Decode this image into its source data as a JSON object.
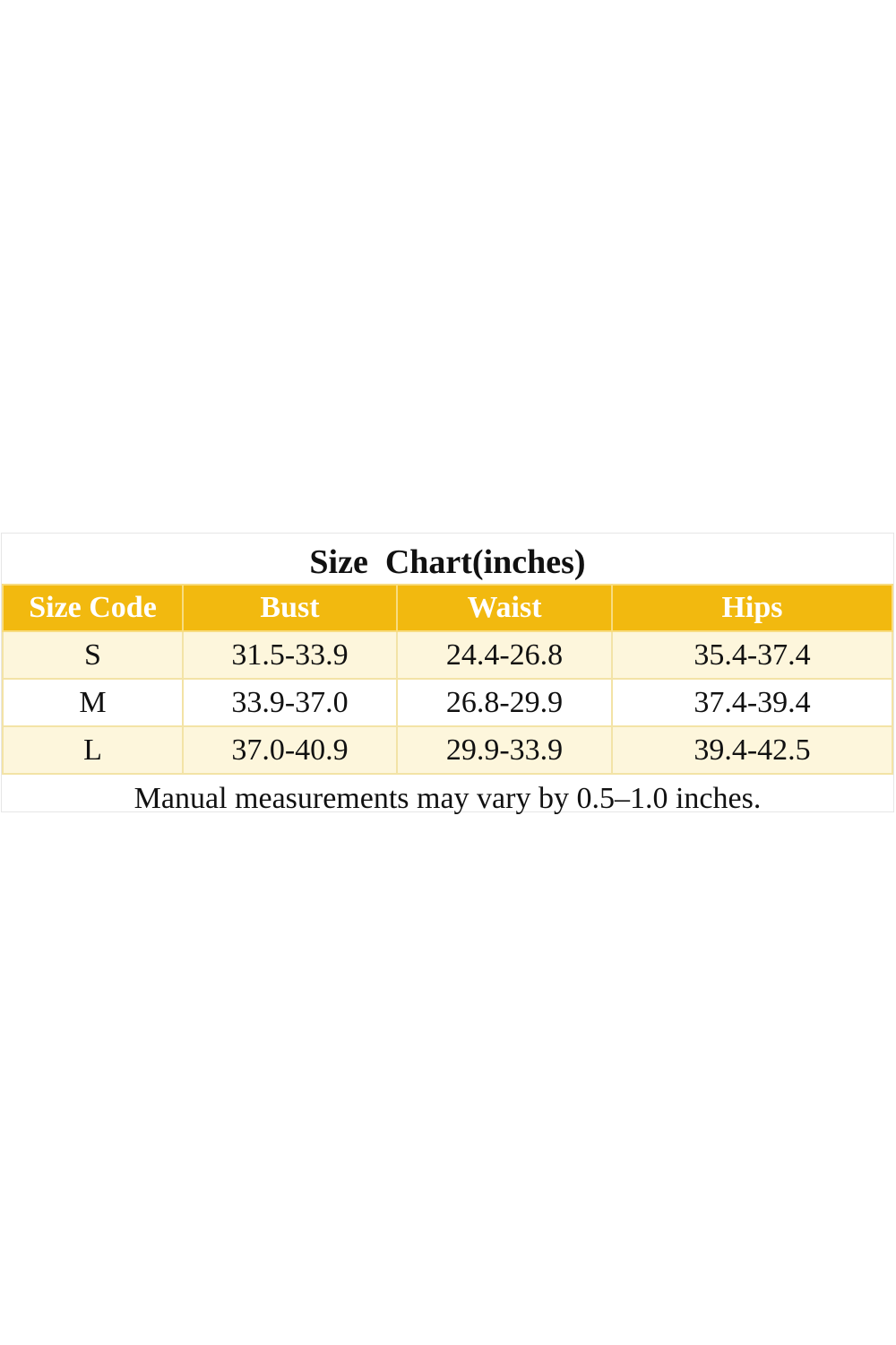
{
  "header": {
    "title": "Size  Chart(inches)"
  },
  "table": {
    "columns": [
      "Size Code",
      "Bust",
      "Waist",
      "Hips"
    ],
    "rows": [
      [
        "S",
        "31.5-33.9",
        "24.4-26.8",
        "35.4-37.4"
      ],
      [
        "M",
        "33.9-37.0",
        "26.8-29.9",
        "37.4-39.4"
      ],
      [
        "L",
        "37.0-40.9",
        "29.9-33.9",
        "39.4-42.5"
      ]
    ]
  },
  "footer": {
    "note": "Manual measurements may vary by 0.5–1.0 inches."
  }
}
